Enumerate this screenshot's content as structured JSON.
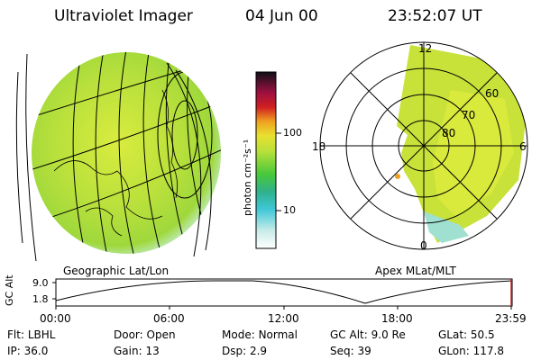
{
  "header": {
    "instrument": "Ultraviolet Imager",
    "date": "04 Jun 00",
    "time": "23:52:07 UT"
  },
  "colorbar": {
    "unit_label": "photon cm⁻²s⁻¹",
    "ticks": [
      "100",
      "10"
    ]
  },
  "geo_panel": {
    "label": "Geographic Lat/Lon"
  },
  "polar_panel": {
    "label": "Apex MLat/MLT",
    "mlt_labels": {
      "top": "12",
      "left": "18",
      "right": "6",
      "bottom": "0"
    },
    "lat_labels": [
      "60",
      "70",
      "80"
    ]
  },
  "altitude_plot": {
    "axis_label": "GC Alt",
    "y_ticks": [
      "9.0",
      "1.8"
    ],
    "x_ticks": [
      "00:00",
      "06:00",
      "12:00",
      "18:00",
      "23:59"
    ]
  },
  "status": {
    "row1": [
      {
        "key": "Flt:",
        "value": "LBHL"
      },
      {
        "key": "Door:",
        "value": "Open"
      },
      {
        "key": "Mode:",
        "value": "Normal"
      },
      {
        "key": "GC Alt:",
        "value": "9.0 Re"
      },
      {
        "key": "GLat:",
        "value": "50.5"
      }
    ],
    "row2": [
      {
        "key": "IP:",
        "value": "36.0"
      },
      {
        "key": "Gain:",
        "value": "13"
      },
      {
        "key": "Dsp:",
        "value": "2.9"
      },
      {
        "key": "Seq:",
        "value": "39"
      },
      {
        "key": "GLon:",
        "value": "117.8"
      }
    ]
  },
  "colors": {
    "aurora_yellow": "#d7e83a",
    "aurora_green": "#8fd23a",
    "aurora_cyan": "#8fe0e6",
    "accent_red": "#cc2222"
  }
}
